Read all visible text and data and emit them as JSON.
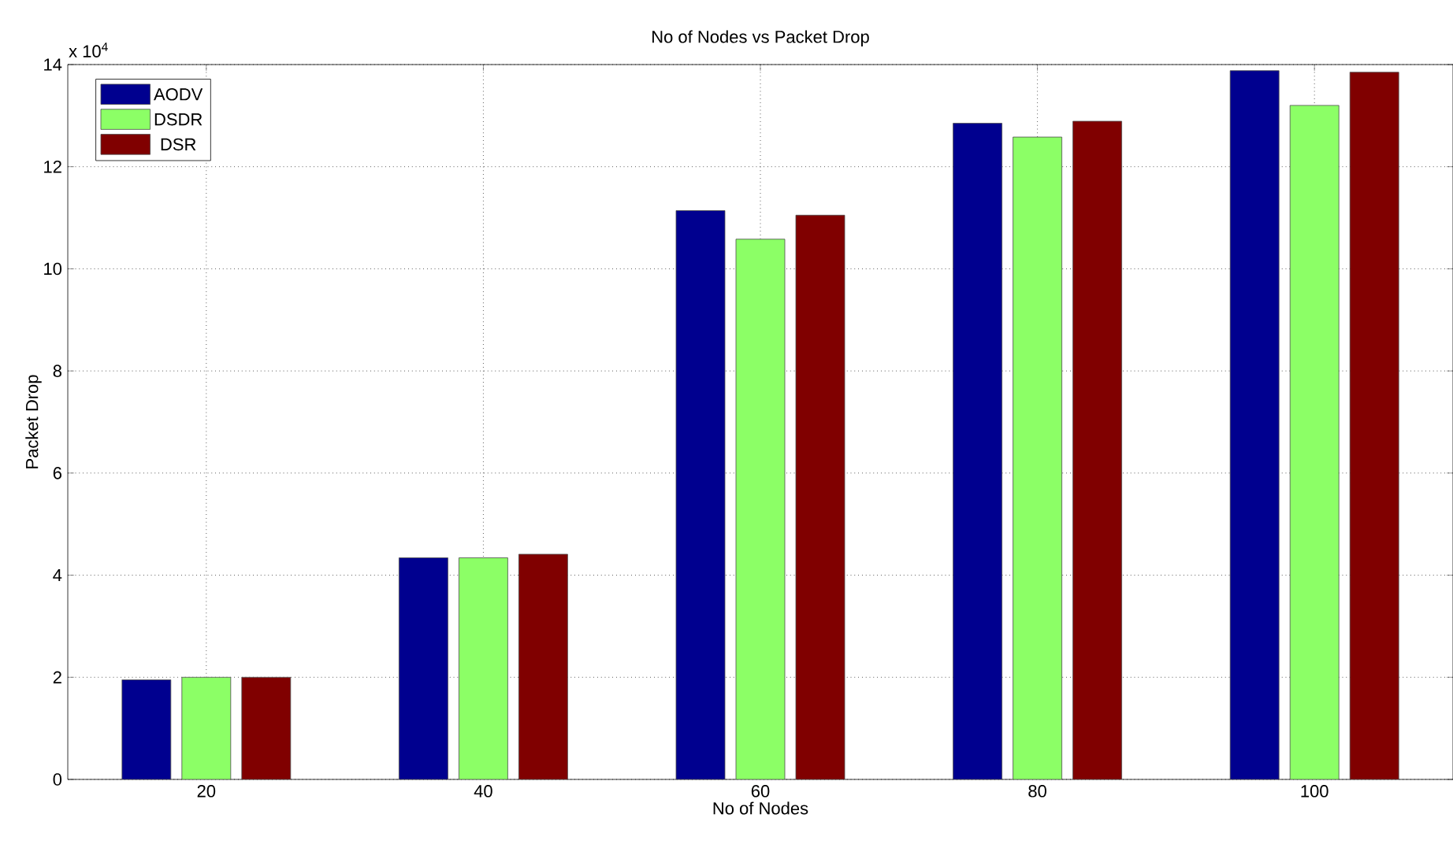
{
  "chart_data": {
    "type": "bar",
    "title": "No of Nodes vs Packet Drop",
    "xlabel": "No of Nodes",
    "ylabel": "Packet Drop",
    "annotations": [
      "x 10$^{4}$"
    ],
    "categories": [
      "20",
      "40",
      "60",
      "80",
      "100"
    ],
    "series": [
      {
        "name": "AODV",
        "color": "#00008f",
        "values": [
          1.95,
          4.34,
          11.14,
          12.85,
          13.88
        ]
      },
      {
        "name": "DSDR",
        "color": "#8cff66",
        "values": [
          2.0,
          4.34,
          10.58,
          12.58,
          13.2
        ]
      },
      {
        "name": "DSR",
        "color": "#800000",
        "values": [
          2.0,
          4.41,
          11.05,
          12.89,
          13.85
        ]
      }
    ],
    "ylim": [
      0,
      14
    ],
    "yticks": [
      0,
      2,
      4,
      6,
      8,
      10,
      12,
      14
    ],
    "grid": true,
    "legend": "top left"
  }
}
